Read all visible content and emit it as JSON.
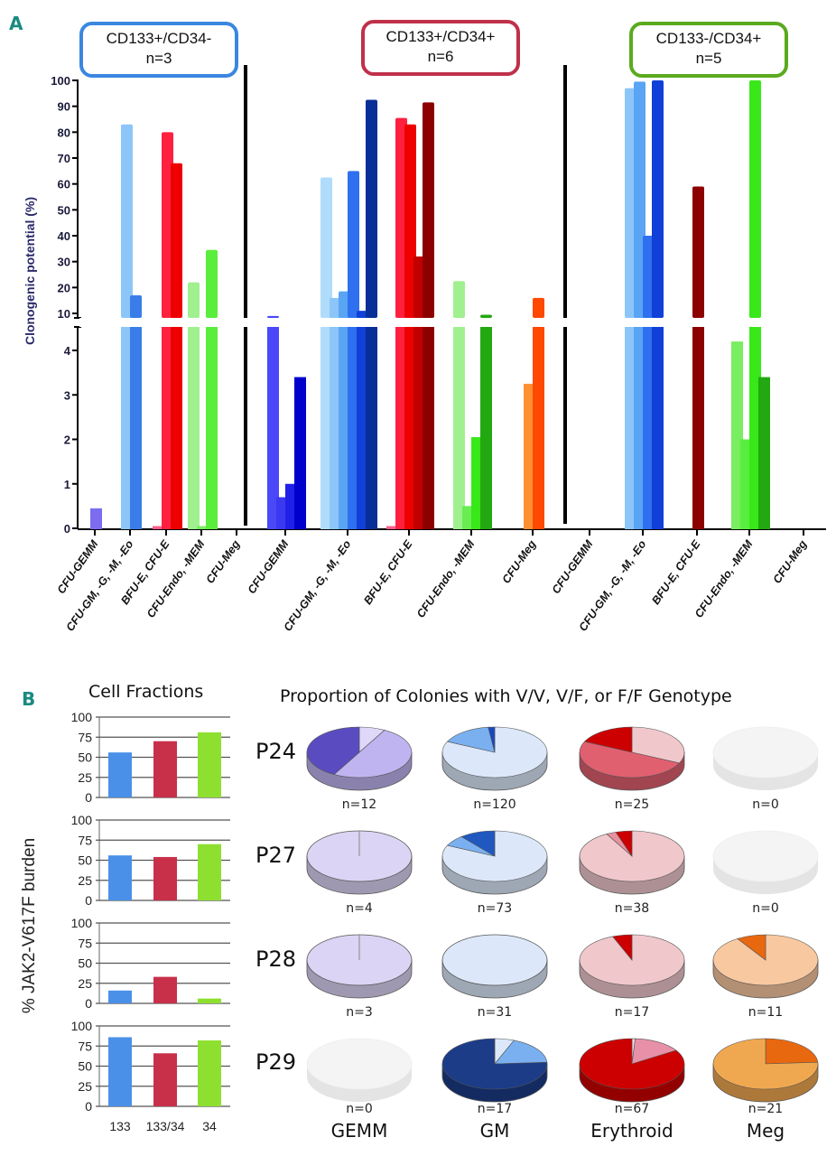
{
  "panel_a": {
    "letter": "A",
    "groups": [
      {
        "title": "CD133+/CD34-",
        "n": "n=3",
        "border_color": "#3a87e0"
      },
      {
        "title": "CD133+/CD34+",
        "n": "n=6",
        "border_color": "#c0304a"
      },
      {
        "title": "CD133-/CD34+",
        "n": "n=5",
        "border_color": "#5aaa1e"
      }
    ]
  },
  "panel_b": {
    "letter": "B",
    "bar_title": "Cell Fractions",
    "ylabel": "% JAK2-V617F burden",
    "pie_title": "Proportion of Colonies with V/V, V/F, or F/F Genotype",
    "row_labels": [
      "P24",
      "P27",
      "P28",
      "P29"
    ],
    "col_labels": [
      "GEMM",
      "GM",
      "Erythroid",
      "Meg"
    ],
    "n_labels": [
      [
        "n=12",
        "n=120",
        "n=25",
        "n=0"
      ],
      [
        "n=4",
        "n=73",
        "n=38",
        "n=0"
      ],
      [
        "n=3",
        "n=31",
        "n=17",
        "n=11"
      ],
      [
        "n=0",
        "n=17",
        "n=67",
        "n=21"
      ]
    ]
  },
  "chart_data": [
    {
      "type": "bar",
      "title": "",
      "ylabel": "Clonogenic potential (%)",
      "y_axis": "broken",
      "ylim_lower": [
        0,
        4.5
      ],
      "ylim_upper": [
        10,
        100
      ],
      "lower_ticks": [
        "0",
        "1",
        "2",
        "3",
        "4"
      ],
      "upper_ticks": [
        "10",
        "20",
        "30",
        "40",
        "50",
        "60",
        "70",
        "80",
        "90",
        "100"
      ],
      "categories": [
        "CFU-GEMM",
        "CFU-GM, -G, -M, -Eo",
        "BFU-E, CFU-E",
        "CFU-Endo, -MEM",
        "CFU-Meg",
        "CFU-GEMM",
        "CFU-GM, -G, -M, -Eo",
        "BFU-E, CFU-E",
        "CFU-Endo, -MEM",
        "CFU-Meg",
        "CFU-GEMM",
        "CFU-GM, -G, -M, -Eo",
        "BFU-E, CFU-E",
        "CFU-Endo, -MEM",
        "CFU-Meg"
      ],
      "groups": [
        "CD133+/CD34- (n=3)",
        "CD133+/CD34+ (n=6)",
        "CD133-/CD34+ (n=5)"
      ],
      "bars": [
        {
          "cat": 0,
          "values": [
            0.45
          ],
          "colors": [
            "#7b6cf0"
          ]
        },
        {
          "cat": 1,
          "values": [
            83,
            17
          ],
          "colors": [
            "#8cc6f8",
            "#3a7de8"
          ]
        },
        {
          "cat": 2,
          "values": [
            0.05,
            80,
            68
          ],
          "colors": [
            "#ff5c8a",
            "#ff2040",
            "#ee0000"
          ]
        },
        {
          "cat": 3,
          "values": [
            22,
            0.05,
            34.5
          ],
          "colors": [
            "#a0f090",
            "#78ee60",
            "#5aee3c"
          ]
        },
        {
          "cat": 4,
          "values": [],
          "colors": []
        },
        {
          "cat": 5,
          "values": [
            9,
            0.7,
            1.0,
            3.4
          ],
          "colors": [
            "#4a48f8",
            "#3a38f0",
            "#2020e8",
            "#0000cc"
          ]
        },
        {
          "cat": 6,
          "values": [
            62.5,
            16,
            18.5,
            65,
            11,
            92.5
          ],
          "colors": [
            "#b0dcfc",
            "#8cc6f8",
            "#5aa4f4",
            "#2e70f0",
            "#1040d8",
            "#082e98"
          ]
        },
        {
          "cat": 7,
          "values": [
            0.05,
            85.5,
            83,
            32,
            91.5
          ],
          "colors": [
            "#ff5c8a",
            "#ff2040",
            "#ee0000",
            "#c00000",
            "#8c0000"
          ]
        },
        {
          "cat": 8,
          "values": [
            22.5,
            0.5,
            2.05,
            9.5
          ],
          "colors": [
            "#a0f090",
            "#68ee50",
            "#38e818",
            "#22a810"
          ]
        },
        {
          "cat": 9,
          "values": [
            3.25,
            16
          ],
          "colors": [
            "#ff9030",
            "#ff4800"
          ]
        },
        {
          "cat": 10,
          "values": [],
          "colors": []
        },
        {
          "cat": 11,
          "values": [
            97,
            99.5,
            40,
            100
          ],
          "colors": [
            "#8cc6f8",
            "#5aa4f4",
            "#2e70f0",
            "#1040d8"
          ]
        },
        {
          "cat": 12,
          "values": [
            59
          ],
          "colors": [
            "#8c0000"
          ]
        },
        {
          "cat": 13,
          "values": [
            4.2,
            2.0,
            100,
            3.4
          ],
          "colors": [
            "#78ee60",
            "#58ee40",
            "#38e818",
            "#22a810"
          ]
        },
        {
          "cat": 14,
          "values": [],
          "colors": []
        }
      ]
    },
    {
      "type": "bar",
      "title": "Cell Fractions",
      "ylabel": "% JAK2-V617F burden",
      "categories": [
        "133",
        "133/34",
        "34"
      ],
      "colors": [
        "#4a90e8",
        "#c8304a",
        "#8ee030"
      ],
      "ylim": [
        0,
        100
      ],
      "yticks": [
        "0",
        "25",
        "50",
        "75",
        "100"
      ],
      "grid": true,
      "panels": [
        {
          "name": "P24",
          "values": [
            56,
            70,
            81
          ]
        },
        {
          "name": "P27",
          "values": [
            56,
            54,
            70
          ]
        },
        {
          "name": "P28",
          "values": [
            16,
            33,
            6
          ]
        },
        {
          "name": "P29",
          "values": [
            86,
            66,
            82
          ]
        }
      ]
    },
    {
      "type": "pie",
      "title": "Proportion of Colonies with V/V, V/F, or F/F Genotype",
      "rows": [
        "P24",
        "P27",
        "P28",
        "P29"
      ],
      "columns": [
        "GEMM",
        "GM",
        "Erythroid",
        "Meg"
      ],
      "pies": [
        [
          {
            "n": 12,
            "slices": [
              {
                "label": "light",
                "value": 0.08,
                "color": "#e0d8f8"
              },
              {
                "label": "mid",
                "value": 0.5,
                "color": "#c0b4f0"
              },
              {
                "label": "dark",
                "value": 0.42,
                "color": "#5a4cc0"
              }
            ]
          },
          {
            "n": 120,
            "slices": [
              {
                "label": "light",
                "value": 0.82,
                "color": "#dce8fa"
              },
              {
                "label": "mid",
                "value": 0.16,
                "color": "#7ab0f0"
              },
              {
                "label": "dark",
                "value": 0.02,
                "color": "#1848c0"
              }
            ]
          },
          {
            "n": 25,
            "slices": [
              {
                "label": "light",
                "value": 0.32,
                "color": "#f0c8cc"
              },
              {
                "label": "mid",
                "value": 0.5,
                "color": "#e06070"
              },
              {
                "label": "dark",
                "value": 0.18,
                "color": "#cc0000"
              }
            ]
          },
          {
            "n": 0,
            "slices": []
          }
        ],
        [
          {
            "n": 4,
            "slices": [
              {
                "label": "mid",
                "value": 1.0,
                "color": "#dcd4f4"
              }
            ]
          },
          {
            "n": 73,
            "slices": [
              {
                "label": "light",
                "value": 0.82,
                "color": "#dce8fa"
              },
              {
                "label": "mid",
                "value": 0.07,
                "color": "#7ab0f0"
              },
              {
                "label": "dark",
                "value": 0.11,
                "color": "#2058c0"
              }
            ]
          },
          {
            "n": 38,
            "slices": [
              {
                "label": "light",
                "value": 0.92,
                "color": "#f0c8cc"
              },
              {
                "label": "mid",
                "value": 0.03,
                "color": "#e890a0"
              },
              {
                "label": "dark",
                "value": 0.05,
                "color": "#cc0000"
              }
            ]
          },
          {
            "n": 0,
            "slices": []
          }
        ],
        [
          {
            "n": 3,
            "slices": [
              {
                "label": "mid",
                "value": 1.0,
                "color": "#dcd4f4"
              }
            ]
          },
          {
            "n": 31,
            "slices": [
              {
                "label": "light",
                "value": 1.0,
                "color": "#dce8fa"
              }
            ]
          },
          {
            "n": 17,
            "slices": [
              {
                "label": "light",
                "value": 0.94,
                "color": "#f0c8cc"
              },
              {
                "label": "dark",
                "value": 0.06,
                "color": "#cc0000"
              }
            ]
          },
          {
            "n": 11,
            "slices": [
              {
                "label": "light",
                "value": 0.91,
                "color": "#f8c8a0"
              },
              {
                "label": "dark",
                "value": 0.09,
                "color": "#e86810"
              }
            ]
          }
        ],
        [
          {
            "n": 0,
            "slices": []
          },
          {
            "n": 17,
            "slices": [
              {
                "label": "light",
                "value": 0.06,
                "color": "#dce8fa"
              },
              {
                "label": "mid",
                "value": 0.18,
                "color": "#7ab0f0"
              },
              {
                "label": "dark",
                "value": 0.76,
                "color": "#1c3c88"
              }
            ]
          },
          {
            "n": 67,
            "slices": [
              {
                "label": "light",
                "value": 0.01,
                "color": "#f0d8dc"
              },
              {
                "label": "mid",
                "value": 0.15,
                "color": "#e890a8"
              },
              {
                "label": "dark",
                "value": 0.84,
                "color": "#cc0000"
              }
            ]
          },
          {
            "n": 21,
            "slices": [
              {
                "label": "dark",
                "value": 0.24,
                "color": "#e86810"
              },
              {
                "label": "light",
                "value": 0.76,
                "color": "#f0a850"
              }
            ]
          }
        ]
      ]
    }
  ]
}
